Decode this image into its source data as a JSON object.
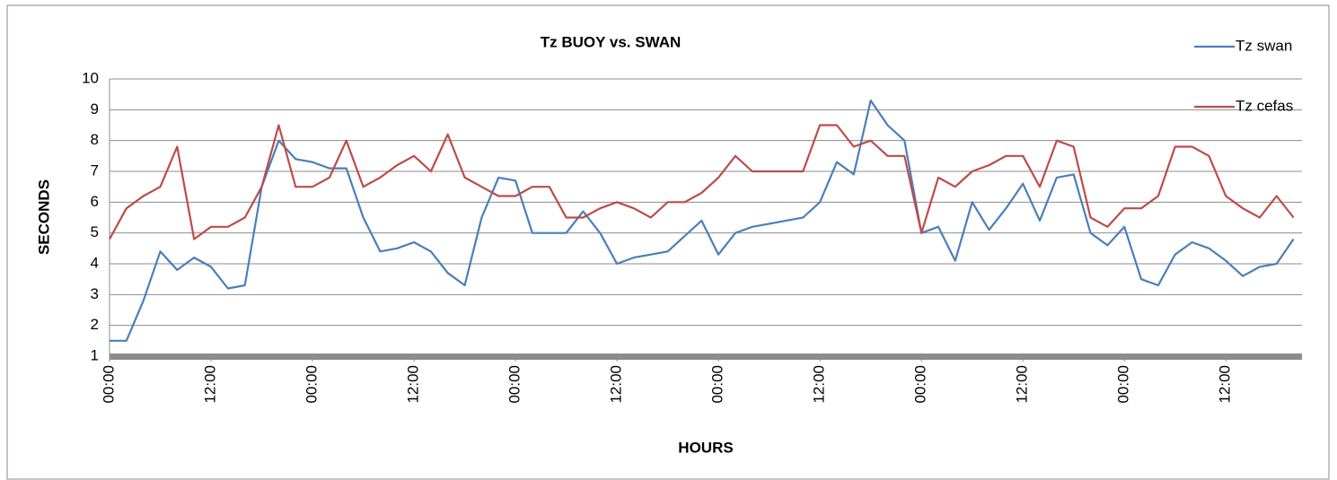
{
  "chart_data": {
    "type": "line",
    "title": "Tz BUOY vs. SWAN",
    "x_label": "HOURS",
    "y_label": "SECONDS",
    "x": [
      0,
      2,
      4,
      6,
      8,
      10,
      12,
      14,
      16,
      18,
      20,
      22,
      24,
      26,
      28,
      30,
      32,
      34,
      36,
      38,
      40,
      42,
      44,
      46,
      48,
      50,
      52,
      54,
      56,
      58,
      60,
      62,
      64,
      66,
      68,
      70,
      72,
      74,
      76,
      78,
      80,
      82,
      84,
      86,
      88,
      90,
      92,
      94,
      96,
      98,
      100,
      102,
      104,
      106,
      108,
      110,
      112,
      114,
      116,
      118,
      120,
      122,
      124,
      126,
      128,
      130,
      132,
      134,
      136,
      138,
      140
    ],
    "series": [
      {
        "name": "Tz swan",
        "color": "#4a7ebb",
        "values": [
          1.5,
          1.5,
          2.8,
          4.4,
          3.8,
          4.2,
          3.9,
          3.2,
          3.3,
          6.5,
          8.0,
          7.4,
          7.3,
          7.1,
          7.1,
          5.5,
          4.4,
          4.5,
          4.7,
          4.4,
          3.7,
          3.3,
          5.5,
          6.8,
          6.7,
          5.0,
          5.0,
          5.0,
          5.7,
          5.0,
          4.0,
          4.2,
          4.3,
          4.4,
          4.9,
          5.4,
          4.3,
          5.0,
          5.2,
          5.3,
          5.4,
          5.5,
          6.0,
          7.3,
          6.9,
          9.3,
          8.5,
          8.0,
          5.0,
          5.2,
          4.1,
          6.0,
          5.1,
          5.8,
          6.6,
          5.4,
          6.8,
          6.9,
          5.0,
          4.6,
          5.2,
          3.5,
          3.3,
          4.3,
          4.7,
          4.5,
          4.1,
          3.6,
          3.9,
          4.0,
          4.8
        ]
      },
      {
        "name": "Tz cefas",
        "color": "#be4b48",
        "values": [
          4.8,
          5.8,
          6.2,
          6.5,
          7.8,
          4.8,
          5.2,
          5.2,
          5.5,
          6.5,
          8.5,
          6.5,
          6.5,
          6.8,
          8.0,
          6.5,
          6.8,
          7.2,
          7.5,
          7.0,
          8.2,
          6.8,
          6.5,
          6.2,
          6.2,
          6.5,
          6.5,
          5.5,
          5.5,
          5.8,
          6.0,
          5.8,
          5.5,
          6.0,
          6.0,
          6.3,
          6.8,
          7.5,
          7.0,
          7.0,
          7.0,
          7.0,
          8.5,
          8.5,
          7.8,
          8.0,
          7.5,
          7.5,
          5.0,
          6.8,
          6.5,
          7.0,
          7.2,
          7.5,
          7.5,
          6.5,
          8.0,
          7.8,
          5.5,
          5.2,
          5.8,
          5.8,
          6.2,
          7.8,
          7.8,
          7.5,
          6.2,
          5.8,
          5.5,
          6.2,
          5.5
        ]
      }
    ],
    "xlim": [
      0,
      141
    ],
    "xticks": [
      {
        "value": 0,
        "label": "00:00"
      },
      {
        "value": 12,
        "label": "12:00"
      },
      {
        "value": 24,
        "label": "00:00"
      },
      {
        "value": 36,
        "label": "12:00"
      },
      {
        "value": 48,
        "label": "00:00"
      },
      {
        "value": 60,
        "label": "12:00"
      },
      {
        "value": 72,
        "label": "00:00"
      },
      {
        "value": 84,
        "label": "12:00"
      },
      {
        "value": 96,
        "label": "00:00"
      },
      {
        "value": 108,
        "label": "12:00"
      },
      {
        "value": 120,
        "label": "00:00"
      },
      {
        "value": 132,
        "label": "12:00"
      }
    ],
    "ylim": [
      1,
      10
    ],
    "yticks": [
      1,
      2,
      3,
      4,
      5,
      6,
      7,
      8,
      9,
      10
    ],
    "grid": true,
    "legend": "top-right"
  }
}
